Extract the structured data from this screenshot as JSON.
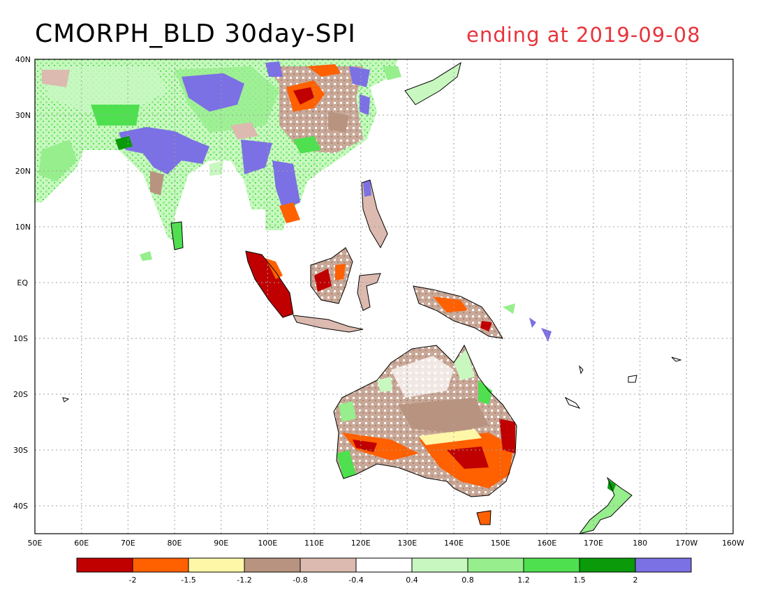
{
  "title": {
    "main": "CMORPH_BLD 30day-SPI",
    "period": "ending at 2019-09-08"
  },
  "axes": {
    "lon_ticks": [
      "50E",
      "60E",
      "70E",
      "80E",
      "90E",
      "100E",
      "110E",
      "120E",
      "130E",
      "140E",
      "150E",
      "160E",
      "170E",
      "180",
      "170W",
      "160W"
    ],
    "lat_ticks": [
      "40N",
      "30N",
      "20N",
      "10N",
      "EQ",
      "10S",
      "20S",
      "30S",
      "40S"
    ]
  },
  "colorbar": {
    "labels": [
      "-2",
      "-1.5",
      "-1.2",
      "-0.8",
      "-0.4",
      "0.4",
      "0.8",
      "1.2",
      "1.5",
      "2"
    ],
    "colors": [
      "#c00000",
      "#ff6000",
      "#fff7a8",
      "#b89480",
      "#dcbab0",
      "#ffffff",
      "#c8f8c0",
      "#96ee8c",
      "#4ee04e",
      "#0a9a0a",
      "#7b70e4"
    ]
  },
  "colors": {
    "coast": "#000000",
    "grid": "#a0a0a0",
    "period_text": "#e8343c"
  }
}
